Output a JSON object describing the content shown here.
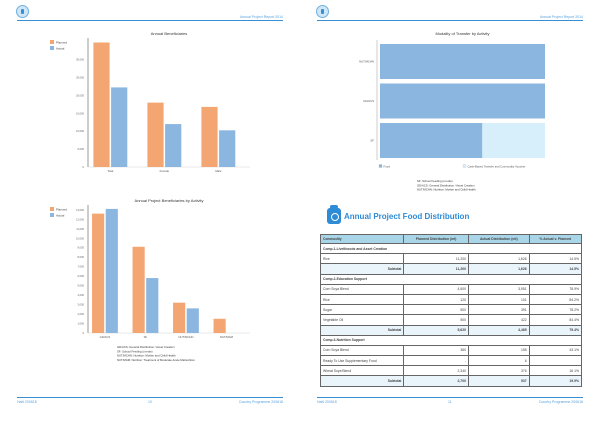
{
  "header": {
    "title": "Annual Project Report 2014"
  },
  "footer": {
    "left": "Haiti 200618",
    "right": "Country Programme 200618"
  },
  "pages": [
    {
      "page_number": "10"
    },
    {
      "page_number": "11"
    }
  ],
  "colors": {
    "planned": "#f4a672",
    "actual": "#8ab6df",
    "food": "#8ab6df",
    "other": "#d6effb",
    "accent": "#2e8bd6",
    "table_header": "#a8d5e8"
  },
  "chart_data": [
    {
      "type": "bar",
      "title": "Annual Beneficiaries",
      "categories": [
        "Total",
        "Female",
        "Male"
      ],
      "series": [
        {
          "name": "Planned",
          "values": [
            34800,
            18000,
            16800
          ]
        },
        {
          "name": "Actual",
          "values": [
            22250,
            12000,
            10250
          ]
        }
      ],
      "yticks": [
        0,
        5000,
        10000,
        15000,
        20000,
        25000,
        30000
      ],
      "ytick_labels": [
        "0",
        "5,000",
        "10,000",
        "15,000",
        "20,000",
        "25,000",
        "30,000"
      ],
      "ylim": [
        0,
        35500
      ],
      "legend": "top-left"
    },
    {
      "type": "bar",
      "title": "Annual Project Beneficiaries by Activity",
      "categories": [
        "GD/ACS",
        "SF",
        "NUT/MCHN",
        "NUT/MAM"
      ],
      "series": [
        {
          "name": "Planned",
          "values": [
            12600,
            9100,
            3200,
            1500
          ]
        },
        {
          "name": "Actual",
          "values": [
            13100,
            5800,
            2600,
            0
          ]
        }
      ],
      "yticks": [
        0,
        1000,
        2000,
        3000,
        4000,
        5000,
        6000,
        7000,
        8000,
        9000,
        10000,
        11000,
        12000,
        13000
      ],
      "ytick_labels": [
        "0",
        "1,000",
        "2,000",
        "3,000",
        "4,000",
        "5,000",
        "6,000",
        "7,000",
        "8,000",
        "9,000",
        "10,000",
        "11,000",
        "12,000",
        "13,000"
      ],
      "ylim": [
        0,
        13300
      ],
      "legend": "top-left",
      "footnotes": [
        "GD/ACS: General Distribution / Asset Creation",
        "SF: School Feeding (on-site)",
        "NUT/MCHN: Nutrition: Mother and Child Health",
        "NUT/MAM: Nutrition: Treatment of Moderate Acute Malnutrition"
      ]
    },
    {
      "type": "bar",
      "orientation": "horizontal",
      "stacked": true,
      "title": "Modality of Transfer by Activity",
      "categories": [
        "NUT/MCHN",
        "GD/ACS",
        "SF"
      ],
      "series": [
        {
          "name": "Food",
          "values": [
            100,
            100,
            62
          ]
        },
        {
          "name": "Cash-Based Transfer and Commodity Voucher",
          "values": [
            0,
            0,
            38
          ]
        }
      ],
      "xlim": [
        0,
        100
      ],
      "legend": "bottom",
      "footnotes": [
        "SF: School Feeding (on-site)",
        "GD/ACS: General Distribution / Asset Creation",
        "NUT/MCHN: Nutrition: Mother and Child Health"
      ]
    }
  ],
  "food_table": {
    "title": "Annual Project Food Distribution",
    "columns": [
      "Commodity",
      "Planned Distribution (mt)",
      "Actual Distribution (mt)",
      "% Actual v. Planned"
    ],
    "groups": [
      {
        "name": "Comp.1-Livelihoods and Asset Creation",
        "rows": [
          [
            "Rice",
            "11,200",
            "1,626",
            "14.5%"
          ]
        ],
        "subtotal": [
          "Subtotal",
          "11,200",
          "1,626",
          "14.5%"
        ]
      },
      {
        "name": "Comp.2-Education Support",
        "rows": [
          [
            "Corn Soya Blend",
            "4,500",
            "3,551",
            "78.9%"
          ],
          [
            "Rice",
            "120",
            "101",
            "84.2%"
          ],
          [
            "Sugar",
            "500",
            "391",
            "78.2%"
          ],
          [
            "Vegetable Oil",
            "500",
            "422",
            "84.4%"
          ]
        ],
        "subtotal": [
          "Subtotal",
          "5,620",
          "4,465",
          "79.4%"
        ]
      },
      {
        "name": "Comp.3-Nutrition Support",
        "rows": [
          [
            "Corn Soya Blend",
            "360",
            "155",
            "43.1%"
          ],
          [
            "Ready To Use Supplementary Food",
            "-",
            "6",
            ""
          ],
          [
            "Wheat Soya Blend",
            "2,340",
            "376",
            "16.1%"
          ]
        ],
        "subtotal": [
          "Subtotal",
          "2,700",
          "537",
          "19.9%"
        ]
      }
    ]
  }
}
